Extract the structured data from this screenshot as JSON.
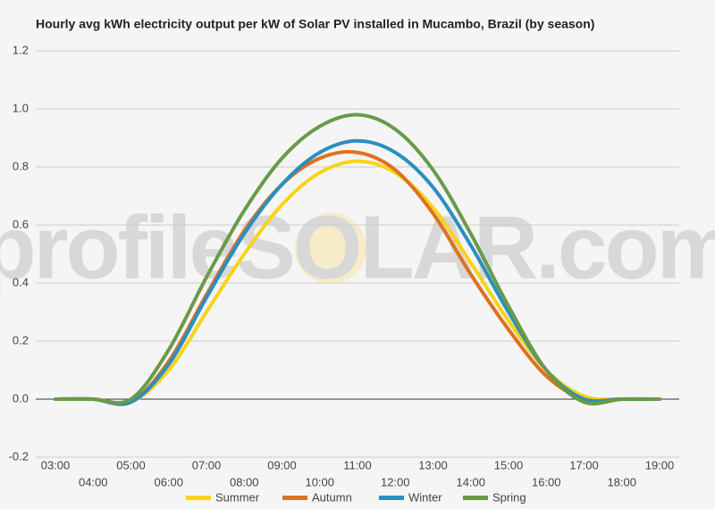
{
  "chart_data": {
    "type": "line",
    "title": "Hourly avg kWh electricity output per kW of Solar PV installed in Mucambo, Brazil (by season)",
    "watermark": "profileSOLAR.com",
    "categories": [
      "03:00",
      "04:00",
      "05:00",
      "06:00",
      "07:00",
      "08:00",
      "09:00",
      "10:00",
      "11:00",
      "12:00",
      "13:00",
      "14:00",
      "15:00",
      "16:00",
      "17:00",
      "18:00",
      "19:00"
    ],
    "series": [
      {
        "name": "Summer",
        "color": "#f7d417",
        "values": [
          0,
          0,
          -0.01,
          0.1,
          0.3,
          0.5,
          0.67,
          0.78,
          0.82,
          0.78,
          0.66,
          0.47,
          0.27,
          0.1,
          0.01,
          0,
          0
        ]
      },
      {
        "name": "Autumn",
        "color": "#e0711f",
        "values": [
          0,
          0,
          -0.01,
          0.13,
          0.36,
          0.58,
          0.74,
          0.83,
          0.85,
          0.79,
          0.64,
          0.43,
          0.24,
          0.08,
          0,
          0,
          0
        ]
      },
      {
        "name": "Winter",
        "color": "#2a8fc0",
        "values": [
          0,
          0,
          -0.01,
          0.12,
          0.35,
          0.57,
          0.74,
          0.85,
          0.89,
          0.85,
          0.73,
          0.53,
          0.3,
          0.1,
          0,
          0,
          0
        ]
      },
      {
        "name": "Spring",
        "color": "#6a9a4a",
        "values": [
          0,
          0,
          0,
          0.17,
          0.42,
          0.65,
          0.83,
          0.94,
          0.98,
          0.93,
          0.79,
          0.57,
          0.32,
          0.1,
          -0.01,
          0,
          0
        ]
      }
    ],
    "ylim": [
      -0.2,
      1.2
    ],
    "yticks": [
      -0.2,
      {
        "value": 0,
        "label": "0.0"
      },
      0.2,
      0.4,
      0.6,
      0.8,
      {
        "value": 1,
        "label": "1.0"
      },
      1.2
    ],
    "grid": true
  }
}
